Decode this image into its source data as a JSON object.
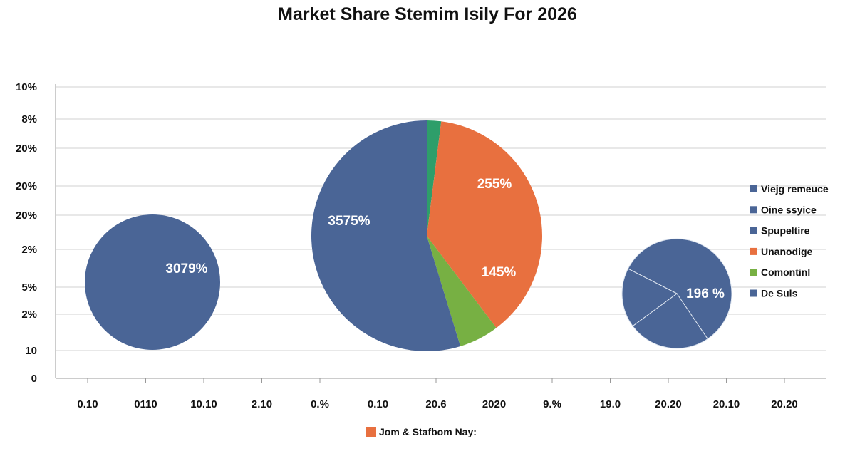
{
  "chart_data": {
    "type": "pie",
    "title": "Market Share Stemim Isily For 2026",
    "y_tick_labels": [
      "10%",
      "8%",
      "20%",
      "20%",
      "20%",
      "2%",
      "5%",
      "2%",
      "10",
      "0"
    ],
    "x_tick_labels": [
      "0.10",
      "0110",
      "10.10",
      "2.10",
      "0.%",
      "0.10",
      "20.6",
      "2020",
      "9.%",
      "19.0",
      "20.20",
      "20.10",
      "20.20"
    ],
    "grid": true,
    "legend": {
      "placement": "right",
      "entries": [
        {
          "name": "Viejg remeuce",
          "color": "#4a6596"
        },
        {
          "name": "Oine ssyice",
          "color": "#4a6596"
        },
        {
          "name": "Spupeltire",
          "color": "#4a6596"
        },
        {
          "name": "Unanodige",
          "color": "#e8703f"
        },
        {
          "name": "Comontinl",
          "color": "#77b043"
        },
        {
          "name": "De Suls",
          "color": "#4a6596"
        }
      ]
    },
    "bottom_legend": {
      "name": "Jom & Stafbom Nay:",
      "color": "#e8703f"
    },
    "pies": [
      {
        "label": "3079%",
        "slices": [
          {
            "value": 100,
            "color": "#4a6596"
          }
        ]
      },
      {
        "label_items": [
          "3575%",
          "255%",
          "145%"
        ],
        "slices": [
          {
            "value": 2,
            "color": "#2e9e6a"
          },
          {
            "value": 37.7,
            "color": "#e8703f"
          },
          {
            "value": 5.6,
            "color": "#77b043"
          },
          {
            "value": 54.7,
            "color": "#4a6596"
          }
        ]
      },
      {
        "label": "196 %",
        "slices": [
          {
            "value": 58,
            "color": "#4a6596"
          },
          {
            "value": 24.4,
            "color": "#4a6596"
          },
          {
            "value": 17.6,
            "color": "#4a6596"
          }
        ]
      }
    ]
  }
}
